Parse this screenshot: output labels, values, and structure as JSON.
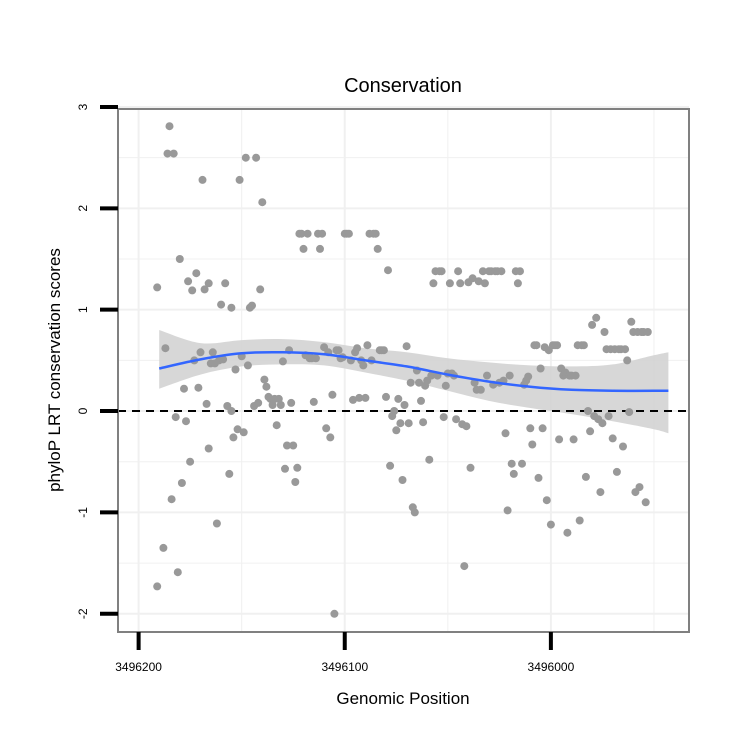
{
  "chart_data": {
    "type": "scatter",
    "title": "Conservation",
    "xlabel": "Genomic Position",
    "ylabel": "phyloP LRT conservation scores",
    "x_reversed": true,
    "xlim": [
      3496210,
      3495933
    ],
    "ylim": [
      -2.18,
      2.98
    ],
    "x_ticks": [
      3496200,
      3496100,
      3496000
    ],
    "x_tick_labels": [
      "3496200",
      "3496100",
      "3496000"
    ],
    "y_ticks": [
      -2,
      -1,
      0,
      1,
      2,
      3
    ],
    "y_tick_labels": [
      "-2",
      "-1",
      "0",
      "1",
      "2",
      "3"
    ],
    "grid": true,
    "colors": {
      "points": "#999999",
      "smooth_line": "#3366ff",
      "confidence_band": "#d0d0d0",
      "panel_border": "#808080",
      "grid": "#f0f0f0",
      "reference_line": "#000000"
    },
    "reference_line": {
      "y": 0,
      "style": "dashed"
    },
    "smooth": {
      "x": [
        3496190,
        3496170,
        3496150,
        3496130,
        3496110,
        3496090,
        3496070,
        3496050,
        3496030,
        3496010,
        3495990,
        3495970,
        3495950,
        3495943
      ],
      "y": [
        0.42,
        0.51,
        0.57,
        0.58,
        0.56,
        0.5,
        0.44,
        0.36,
        0.29,
        0.24,
        0.21,
        0.2,
        0.2,
        0.2
      ],
      "lower": [
        0.22,
        0.36,
        0.44,
        0.46,
        0.45,
        0.38,
        0.3,
        0.2,
        0.1,
        0.03,
        -0.03,
        -0.1,
        -0.18,
        -0.22
      ],
      "upper": [
        0.8,
        0.67,
        0.7,
        0.71,
        0.68,
        0.62,
        0.58,
        0.52,
        0.48,
        0.45,
        0.44,
        0.46,
        0.55,
        0.58
      ]
    },
    "points": [
      [
        3496191,
        -1.73
      ],
      [
        3496191,
        1.22
      ],
      [
        3496188,
        -1.35
      ],
      [
        3496187,
        0.62
      ],
      [
        3496186,
        2.54
      ],
      [
        3496185,
        2.81
      ],
      [
        3496184,
        -0.87
      ],
      [
        3496183,
        2.54
      ],
      [
        3496182,
        -0.06
      ],
      [
        3496181,
        -1.59
      ],
      [
        3496180,
        1.5
      ],
      [
        3496179,
        -0.71
      ],
      [
        3496178,
        0.22
      ],
      [
        3496177,
        -0.1
      ],
      [
        3496176,
        1.28
      ],
      [
        3496175,
        -0.5
      ],
      [
        3496174,
        1.19
      ],
      [
        3496173,
        0.5
      ],
      [
        3496172,
        1.36
      ],
      [
        3496171,
        0.23
      ],
      [
        3496170,
        0.58
      ],
      [
        3496169,
        2.28
      ],
      [
        3496168,
        1.2
      ],
      [
        3496167,
        0.07
      ],
      [
        3496166,
        -0.37
      ],
      [
        3496166,
        1.26
      ],
      [
        3496165,
        0.47
      ],
      [
        3496164,
        0.58
      ],
      [
        3496163,
        0.47
      ],
      [
        3496162,
        -1.11
      ],
      [
        3496161,
        0.5
      ],
      [
        3496160,
        1.05
      ],
      [
        3496159,
        0.51
      ],
      [
        3496158,
        1.26
      ],
      [
        3496157,
        0.05
      ],
      [
        3496156,
        -0.62
      ],
      [
        3496155,
        0.0
      ],
      [
        3496155,
        1.02
      ],
      [
        3496154,
        -0.26
      ],
      [
        3496153,
        0.41
      ],
      [
        3496152,
        -0.18
      ],
      [
        3496151,
        2.28
      ],
      [
        3496150,
        0.54
      ],
      [
        3496149,
        -0.21
      ],
      [
        3496148,
        2.5
      ],
      [
        3496147,
        0.45
      ],
      [
        3496146,
        1.02
      ],
      [
        3496145,
        1.04
      ],
      [
        3496144,
        0.05
      ],
      [
        3496143,
        2.5
      ],
      [
        3496142,
        0.08
      ],
      [
        3496141,
        1.2
      ],
      [
        3496140,
        2.06
      ],
      [
        3496139,
        0.31
      ],
      [
        3496138,
        0.24
      ],
      [
        3496137,
        0.14
      ],
      [
        3496136,
        0.12
      ],
      [
        3496135,
        0.06
      ],
      [
        3496134,
        0.12
      ],
      [
        3496133,
        -0.14
      ],
      [
        3496132,
        0.12
      ],
      [
        3496131,
        0.06
      ],
      [
        3496130,
        0.49
      ],
      [
        3496129,
        -0.57
      ],
      [
        3496128,
        -0.34
      ],
      [
        3496127,
        0.6
      ],
      [
        3496126,
        0.08
      ],
      [
        3496125,
        -0.34
      ],
      [
        3496124,
        -0.7
      ],
      [
        3496123,
        -0.56
      ],
      [
        3496122,
        1.75
      ],
      [
        3496121,
        1.75
      ],
      [
        3496120,
        1.6
      ],
      [
        3496119,
        0.55
      ],
      [
        3496118,
        1.75
      ],
      [
        3496117,
        0.52
      ],
      [
        3496116,
        0.52
      ],
      [
        3496115,
        0.09
      ],
      [
        3496114,
        0.52
      ],
      [
        3496113,
        1.75
      ],
      [
        3496112,
        1.6
      ],
      [
        3496111,
        1.75
      ],
      [
        3496110,
        0.63
      ],
      [
        3496109,
        -0.17
      ],
      [
        3496108,
        0.58
      ],
      [
        3496107,
        -0.26
      ],
      [
        3496106,
        0.16
      ],
      [
        3496105,
        -2.0
      ],
      [
        3496104,
        0.6
      ],
      [
        3496103,
        0.6
      ],
      [
        3496102,
        0.52
      ],
      [
        3496101,
        0.53
      ],
      [
        3496100,
        1.75
      ],
      [
        3496099,
        1.75
      ],
      [
        3496098,
        1.75
      ],
      [
        3496097,
        0.5
      ],
      [
        3496096,
        0.11
      ],
      [
        3496095,
        0.58
      ],
      [
        3496094,
        0.62
      ],
      [
        3496093,
        0.13
      ],
      [
        3496092,
        0.5
      ],
      [
        3496091,
        0.45
      ],
      [
        3496090,
        0.13
      ],
      [
        3496089,
        0.65
      ],
      [
        3496088,
        1.75
      ],
      [
        3496087,
        0.5
      ],
      [
        3496086,
        1.75
      ],
      [
        3496085,
        1.75
      ],
      [
        3496084,
        1.6
      ],
      [
        3496083,
        0.6
      ],
      [
        3496082,
        0.6
      ],
      [
        3496081,
        0.6
      ],
      [
        3496080,
        0.14
      ],
      [
        3496079,
        1.39
      ],
      [
        3496078,
        -0.54
      ],
      [
        3496077,
        -0.05
      ],
      [
        3496076,
        0.0
      ],
      [
        3496075,
        -0.19
      ],
      [
        3496074,
        0.12
      ],
      [
        3496073,
        -0.12
      ],
      [
        3496072,
        -0.68
      ],
      [
        3496071,
        0.06
      ],
      [
        3496070,
        0.64
      ],
      [
        3496069,
        -0.12
      ],
      [
        3496068,
        0.28
      ],
      [
        3496067,
        -0.95
      ],
      [
        3496066,
        -1.0
      ],
      [
        3496065,
        0.4
      ],
      [
        3496064,
        0.28
      ],
      [
        3496063,
        0.1
      ],
      [
        3496062,
        -0.11
      ],
      [
        3496061,
        0.25
      ],
      [
        3496060,
        0.3
      ],
      [
        3496059,
        -0.48
      ],
      [
        3496058,
        0.35
      ],
      [
        3496057,
        1.26
      ],
      [
        3496056,
        1.38
      ],
      [
        3496055,
        0.35
      ],
      [
        3496054,
        1.38
      ],
      [
        3496053,
        1.38
      ],
      [
        3496052,
        -0.06
      ],
      [
        3496051,
        0.25
      ],
      [
        3496050,
        0.37
      ],
      [
        3496049,
        1.26
      ],
      [
        3496048,
        0.37
      ],
      [
        3496047,
        0.35
      ],
      [
        3496046,
        -0.08
      ],
      [
        3496045,
        1.38
      ],
      [
        3496044,
        1.26
      ],
      [
        3496043,
        -0.13
      ],
      [
        3496042,
        -1.53
      ],
      [
        3496041,
        -0.15
      ],
      [
        3496040,
        1.27
      ],
      [
        3496039,
        -0.56
      ],
      [
        3496038,
        1.31
      ],
      [
        3496037,
        0.28
      ],
      [
        3496036,
        0.21
      ],
      [
        3496035,
        1.28
      ],
      [
        3496034,
        0.21
      ],
      [
        3496033,
        1.38
      ],
      [
        3496032,
        1.26
      ],
      [
        3496031,
        0.35
      ],
      [
        3496030,
        1.38
      ],
      [
        3496029,
        1.38
      ],
      [
        3496028,
        0.26
      ],
      [
        3496027,
        1.38
      ],
      [
        3496026,
        1.38
      ],
      [
        3496025,
        0.28
      ],
      [
        3496024,
        1.38
      ],
      [
        3496023,
        0.3
      ],
      [
        3496022,
        -0.22
      ],
      [
        3496021,
        -0.98
      ],
      [
        3496020,
        0.35
      ],
      [
        3496019,
        -0.52
      ],
      [
        3496018,
        -0.62
      ],
      [
        3496017,
        1.38
      ],
      [
        3496016,
        1.26
      ],
      [
        3496015,
        1.38
      ],
      [
        3496014,
        -0.52
      ],
      [
        3496013,
        0.26
      ],
      [
        3496012,
        0.3
      ],
      [
        3496011,
        0.34
      ],
      [
        3496010,
        -0.17
      ],
      [
        3496009,
        -0.33
      ],
      [
        3496008,
        0.65
      ],
      [
        3496007,
        0.65
      ],
      [
        3496006,
        -0.66
      ],
      [
        3496005,
        0.42
      ],
      [
        3496004,
        -0.17
      ],
      [
        3496003,
        0.63
      ],
      [
        3496002,
        -0.88
      ],
      [
        3496001,
        0.6
      ],
      [
        3496000,
        -1.12
      ],
      [
        3495999,
        0.65
      ],
      [
        3495998,
        0.65
      ],
      [
        3495997,
        0.65
      ],
      [
        3495996,
        -0.28
      ],
      [
        3495995,
        0.42
      ],
      [
        3495994,
        0.35
      ],
      [
        3495993,
        0.38
      ],
      [
        3495992,
        -1.2
      ],
      [
        3495991,
        0.35
      ],
      [
        3495990,
        0.35
      ],
      [
        3495989,
        -0.28
      ],
      [
        3495988,
        0.35
      ],
      [
        3495987,
        0.65
      ],
      [
        3495986,
        -1.08
      ],
      [
        3495985,
        0.65
      ],
      [
        3495984,
        0.65
      ],
      [
        3495983,
        -0.65
      ],
      [
        3495982,
        0.0
      ],
      [
        3495981,
        -0.2
      ],
      [
        3495980,
        0.85
      ],
      [
        3495979,
        -0.05
      ],
      [
        3495978,
        0.92
      ],
      [
        3495977,
        -0.08
      ],
      [
        3495976,
        -0.8
      ],
      [
        3495975,
        -0.12
      ],
      [
        3495974,
        0.78
      ],
      [
        3495973,
        0.61
      ],
      [
        3495972,
        -0.05
      ],
      [
        3495971,
        0.61
      ],
      [
        3495970,
        -0.27
      ],
      [
        3495969,
        0.61
      ],
      [
        3495968,
        -0.6
      ],
      [
        3495967,
        0.61
      ],
      [
        3495966,
        0.61
      ],
      [
        3495965,
        -0.35
      ],
      [
        3495964,
        0.61
      ],
      [
        3495963,
        0.5
      ],
      [
        3495962,
        -0.01
      ],
      [
        3495961,
        0.88
      ],
      [
        3495960,
        0.78
      ],
      [
        3495959,
        -0.8
      ],
      [
        3495958,
        0.78
      ],
      [
        3495957,
        -0.75
      ],
      [
        3495956,
        0.78
      ],
      [
        3495955,
        0.78
      ],
      [
        3495954,
        -0.9
      ],
      [
        3495953,
        0.78
      ]
    ]
  }
}
